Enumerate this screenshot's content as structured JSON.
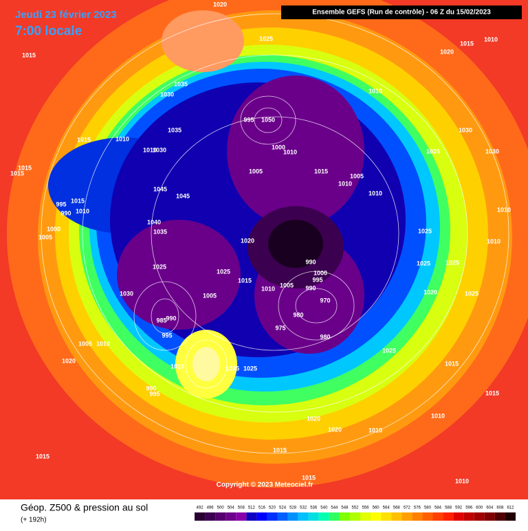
{
  "header": {
    "date": "Jeudi 23 février 2023",
    "time": "7:00 locale",
    "run": "Ensemble GEFS  (Run de contrôle)  -  06 Z du 15/02/2023"
  },
  "footer": {
    "title": "Géop. Z500 & pression au sol",
    "lead": "(+ 192h)",
    "copyright": "Copyright © 2023 Meteociel.fr"
  },
  "legend": {
    "values": [
      492,
      496,
      500,
      504,
      508,
      512,
      516,
      520,
      524,
      528,
      532,
      536,
      540,
      544,
      548,
      552,
      556,
      560,
      564,
      568,
      572,
      576,
      580,
      584,
      588,
      592,
      596,
      600,
      604,
      608,
      612
    ],
    "colors": [
      "#2a0033",
      "#3c0050",
      "#55006e",
      "#6e008c",
      "#8a00a8",
      "#1000c0",
      "#0000ff",
      "#0030ff",
      "#0060ff",
      "#0090ff",
      "#00c0ff",
      "#00e0e0",
      "#00ffb0",
      "#30ff60",
      "#80ff00",
      "#b0ff00",
      "#e0ff00",
      "#ffff00",
      "#ffe000",
      "#ffc000",
      "#ffa000",
      "#ff8000",
      "#ff6000",
      "#ff4000",
      "#ff2000",
      "#e00000",
      "#c00000",
      "#a00000",
      "#800000",
      "#500000",
      "#200000"
    ]
  },
  "pressure_labels": [
    1020,
    1025,
    1015,
    1010,
    1020,
    1015,
    1035,
    1030,
    1010,
    995,
    1050,
    1035,
    1030,
    1015,
    1010,
    1010,
    1030,
    1000,
    1010,
    1025,
    1030,
    1015,
    1015,
    1005,
    1015,
    1005,
    1010,
    1045,
    1045,
    1010,
    995,
    1015,
    990,
    1010,
    1010,
    1040,
    1000,
    1035,
    1025,
    1005,
    1020,
    1010,
    990,
    1025,
    1025,
    1025,
    1025,
    1000,
    1015,
    995,
    1010,
    1005,
    1030,
    1005,
    990,
    1020,
    1025,
    970,
    980,
    985,
    990,
    975,
    980,
    995,
    1005,
    1010,
    1025,
    1020,
    1015,
    1035,
    1025,
    1015,
    990,
    995,
    1015,
    1020,
    1010,
    1020,
    1010,
    1015,
    1015,
    1015,
    1010
  ]
}
